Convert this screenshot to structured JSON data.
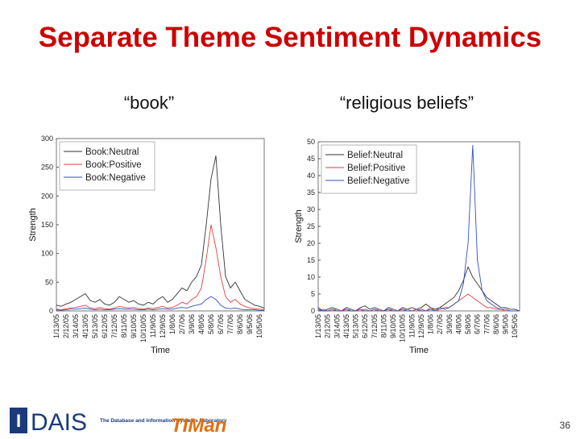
{
  "title": "Separate Theme Sentiment Dynamics",
  "page_number": "36",
  "footer": {
    "lab_logo": "DAIS",
    "lab_name": "The Database and Information Systems Laboratory",
    "group_logo": "TIMan"
  },
  "chart_data": [
    {
      "type": "line",
      "title": "“book”",
      "x_label": "Time",
      "y_label": "Strength",
      "categories": [
        "1/13/05",
        null,
        "2/12/05",
        null,
        "3/14/05",
        null,
        "4/13/05",
        null,
        "5/13/05",
        null,
        "6/12/05",
        null,
        "7/12/05",
        null,
        "8/11/05",
        null,
        "9/10/05",
        null,
        "10/10/05",
        null,
        "11/9/05",
        null,
        "12/9/05",
        null,
        "1/8/06",
        null,
        "2/7/06",
        null,
        "3/9/06",
        null,
        "4/8/06",
        null,
        "5/8/06",
        null,
        "6/7/06",
        null,
        "7/7/06",
        null,
        "8/6/06",
        null,
        "9/5/06",
        null,
        "10/5/06",
        null
      ],
      "ylim": [
        0,
        300
      ],
      "yticks": [
        0,
        50,
        100,
        150,
        200,
        250,
        300
      ],
      "legend": "upper left",
      "series": [
        {
          "name": "Book:Neutral",
          "color": "#333333",
          "values": [
            10,
            8,
            12,
            15,
            20,
            25,
            30,
            18,
            15,
            20,
            12,
            10,
            15,
            25,
            20,
            15,
            18,
            12,
            10,
            15,
            12,
            20,
            25,
            15,
            20,
            30,
            40,
            35,
            50,
            60,
            80,
            150,
            230,
            270,
            150,
            60,
            40,
            50,
            35,
            20,
            15,
            10,
            8,
            5
          ]
        },
        {
          "name": "Book:Positive",
          "color": "#e04040",
          "values": [
            3,
            2,
            4,
            5,
            6,
            8,
            10,
            5,
            4,
            6,
            4,
            3,
            5,
            8,
            6,
            5,
            6,
            4,
            3,
            5,
            4,
            6,
            8,
            5,
            6,
            10,
            15,
            12,
            20,
            25,
            40,
            90,
            150,
            110,
            60,
            25,
            15,
            20,
            12,
            8,
            5,
            4,
            3,
            2
          ]
        },
        {
          "name": "Book:Negative",
          "color": "#3050c0",
          "values": [
            2,
            1,
            2,
            3,
            3,
            4,
            5,
            3,
            2,
            3,
            2,
            2,
            3,
            4,
            3,
            3,
            3,
            2,
            2,
            3,
            2,
            3,
            4,
            3,
            3,
            5,
            6,
            5,
            8,
            10,
            12,
            20,
            25,
            20,
            10,
            5,
            4,
            5,
            3,
            2,
            2,
            2,
            1,
            1
          ]
        }
      ]
    },
    {
      "type": "line",
      "title": "“religious beliefs”",
      "x_label": "Time",
      "y_label": "Strength",
      "categories": [
        "1/13/05",
        null,
        "2/12/05",
        null,
        "3/14/05",
        null,
        "4/13/05",
        null,
        "5/13/05",
        null,
        "6/12/05",
        null,
        "7/12/05",
        null,
        "8/11/05",
        null,
        "9/10/05",
        null,
        "10/10/05",
        null,
        "11/9/05",
        null,
        "12/9/05",
        null,
        "1/8/06",
        null,
        "2/7/06",
        null,
        "3/9/06",
        null,
        "4/8/06",
        null,
        "5/8/06",
        null,
        "6/7/06",
        null,
        "7/7/06",
        null,
        "8/6/06",
        null,
        "9/5/06",
        null,
        "10/5/06",
        null
      ],
      "ylim": [
        0,
        50
      ],
      "yticks": [
        0,
        5,
        10,
        15,
        20,
        25,
        30,
        35,
        40,
        45,
        50
      ],
      "legend": "upper left",
      "series": [
        {
          "name": "Belief:Neutral",
          "color": "#333333",
          "values": [
            1,
            0,
            0.5,
            1,
            0.5,
            0,
            1,
            0.5,
            0,
            1,
            1.5,
            0.5,
            1,
            0.5,
            0,
            1,
            0.5,
            0,
            1,
            0.5,
            1,
            0.5,
            1,
            2,
            1,
            0.5,
            1,
            2,
            3,
            4,
            6,
            9,
            13,
            10,
            8,
            6,
            4,
            3,
            2,
            1,
            1,
            0.5,
            0.5,
            0
          ]
        },
        {
          "name": "Belief:Positive",
          "color": "#e04040",
          "values": [
            0,
            0.5,
            0,
            0,
            0.5,
            0,
            0,
            0.5,
            0,
            0,
            0.5,
            0,
            0,
            0.5,
            0,
            0,
            0.5,
            0,
            0,
            0.5,
            0,
            0,
            0.5,
            0,
            1,
            0,
            0.5,
            1,
            1,
            2,
            3,
            4,
            5,
            4,
            3,
            2,
            1,
            1,
            0.5,
            0.5,
            0,
            0,
            0,
            0
          ]
        },
        {
          "name": "Belief:Negative",
          "color": "#3050c0",
          "values": [
            0.5,
            0,
            0,
            0.5,
            0,
            0,
            0.5,
            0,
            0,
            0.5,
            0,
            0,
            0.5,
            0,
            0,
            0.5,
            0,
            0,
            0.5,
            0,
            0,
            0.5,
            0,
            0,
            0.5,
            0,
            1,
            0.5,
            1,
            2,
            3,
            8,
            20,
            49,
            15,
            6,
            3,
            2,
            1,
            0.5,
            0.5,
            0,
            0,
            0
          ]
        }
      ]
    }
  ]
}
